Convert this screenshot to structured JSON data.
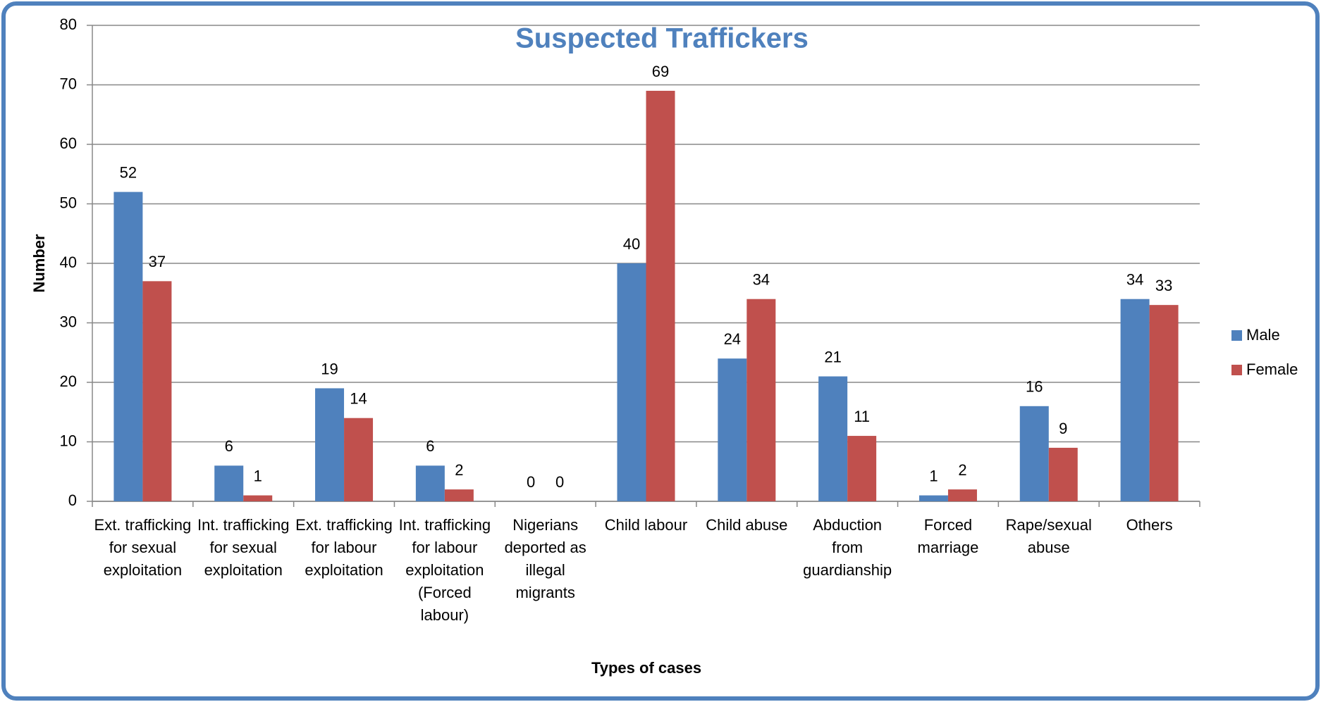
{
  "chart_data": {
    "type": "bar",
    "title": "Suspected Traffickers",
    "xlabel": "Types of cases",
    "ylabel": "Number",
    "categories": [
      "Ext. trafficking for sexual exploitation",
      "Int. trafficking for sexual exploitation",
      "Ext. trafficking for labour exploitation",
      "Int. trafficking for labour exploitation (Forced labour)",
      "Nigerians deported as illegal migrants",
      "Child labour",
      "Child abuse",
      "Abduction from guardianship",
      "Forced marriage",
      "Rape/sexual abuse",
      "Others"
    ],
    "series": [
      {
        "name": "Male",
        "color": "#4f81bd",
        "values": [
          52,
          6,
          19,
          6,
          0,
          40,
          24,
          21,
          1,
          16,
          34
        ]
      },
      {
        "name": "Female",
        "color": "#c0504d",
        "values": [
          37,
          1,
          14,
          2,
          0,
          69,
          34,
          11,
          2,
          9,
          33
        ]
      }
    ],
    "ylim": [
      0,
      80
    ],
    "yticks": [
      0,
      10,
      20,
      30,
      40,
      50,
      60,
      70,
      80
    ],
    "grid": true,
    "legend": "right"
  }
}
